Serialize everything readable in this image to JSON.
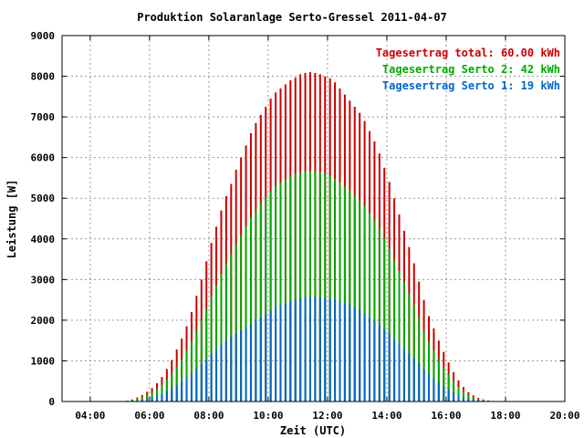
{
  "chart_data": {
    "type": "bar",
    "title": "Produktion Solaranlage Serto-Gressel 2011-04-07",
    "xlabel": "Zeit (UTC)",
    "ylabel": "Leistung [W]",
    "xlim": [
      3.05,
      20.0
    ],
    "ylim": [
      0,
      9000
    ],
    "grid": true,
    "legend_position": "top-right",
    "x_ticks": [
      "04:00",
      "06:00",
      "08:00",
      "10:00",
      "12:00",
      "14:00",
      "16:00",
      "18:00",
      "20:00"
    ],
    "y_ticks": [
      "0",
      "1000",
      "2000",
      "3000",
      "4000",
      "5000",
      "6000",
      "7000",
      "8000",
      "9000"
    ],
    "colors": {
      "total": "#cc0000",
      "serto2": "#00aa00",
      "serto1": "#0066cc",
      "grid": "#999999",
      "axis": "#000000"
    },
    "series": [
      {
        "name": "Tagesertrag total: 60.00 kWh"
      },
      {
        "name": "Tagesertrag Serto 2: 42 kWh"
      },
      {
        "name": "Tagesertrag Serto 1: 19 kWh"
      }
    ],
    "x": [
      "05:15",
      "05:25",
      "05:35",
      "05:45",
      "05:55",
      "06:05",
      "06:15",
      "06:25",
      "06:35",
      "06:45",
      "06:55",
      "07:05",
      "07:15",
      "07:25",
      "07:35",
      "07:45",
      "07:55",
      "08:05",
      "08:15",
      "08:25",
      "08:35",
      "08:45",
      "08:55",
      "09:05",
      "09:15",
      "09:25",
      "09:35",
      "09:45",
      "09:55",
      "10:05",
      "10:15",
      "10:25",
      "10:35",
      "10:45",
      "10:55",
      "11:05",
      "11:15",
      "11:25",
      "11:35",
      "11:45",
      "11:55",
      "12:05",
      "12:15",
      "12:25",
      "12:35",
      "12:45",
      "12:55",
      "13:05",
      "13:15",
      "13:25",
      "13:35",
      "13:45",
      "13:55",
      "14:05",
      "14:15",
      "14:25",
      "14:35",
      "14:45",
      "14:55",
      "15:05",
      "15:15",
      "15:25",
      "15:35",
      "15:45",
      "15:55",
      "16:05",
      "16:15",
      "16:25",
      "16:35",
      "16:45",
      "16:55",
      "17:05",
      "17:15",
      "17:25",
      "17:35",
      "17:45"
    ],
    "total": [
      20,
      50,
      100,
      160,
      240,
      330,
      450,
      600,
      800,
      1020,
      1280,
      1550,
      1850,
      2200,
      2600,
      3000,
      3450,
      3900,
      4300,
      4700,
      5050,
      5350,
      5700,
      6000,
      6300,
      6600,
      6850,
      7050,
      7250,
      7450,
      7600,
      7700,
      7800,
      7900,
      7970,
      8050,
      8080,
      8100,
      8080,
      8050,
      8000,
      7950,
      7850,
      7700,
      7550,
      7400,
      7250,
      7100,
      6900,
      6650,
      6400,
      6100,
      5750,
      5400,
      5000,
      4600,
      4200,
      3800,
      3400,
      2950,
      2500,
      2100,
      1800,
      1500,
      1220,
      960,
      720,
      520,
      360,
      230,
      150,
      90,
      50,
      25,
      10,
      5
    ],
    "serto2": [
      15,
      35,
      70,
      110,
      165,
      230,
      310,
      410,
      540,
      690,
      860,
      1040,
      1250,
      1480,
      1740,
      2000,
      2280,
      2580,
      2860,
      3130,
      3390,
      3620,
      3870,
      4100,
      4320,
      4520,
      4700,
      4880,
      5030,
      5170,
      5290,
      5380,
      5460,
      5530,
      5590,
      5630,
      5660,
      5670,
      5660,
      5640,
      5600,
      5550,
      5480,
      5390,
      5290,
      5180,
      5070,
      4950,
      4810,
      4640,
      4460,
      4260,
      4020,
      3770,
      3490,
      3210,
      2930,
      2650,
      2370,
      2060,
      1750,
      1470,
      1260,
      1050,
      850,
      670,
      500,
      360,
      250,
      160,
      105,
      63,
      35,
      18,
      7,
      4
    ],
    "serto1": [
      5,
      12,
      25,
      45,
      70,
      100,
      140,
      190,
      250,
      320,
      400,
      480,
      580,
      690,
      800,
      920,
      1040,
      1160,
      1280,
      1400,
      1500,
      1590,
      1670,
      1750,
      1830,
      1910,
      1990,
      2070,
      2150,
      2230,
      2300,
      2360,
      2410,
      2460,
      2500,
      2540,
      2560,
      2580,
      2570,
      2560,
      2550,
      2530,
      2500,
      2460,
      2420,
      2380,
      2320,
      2250,
      2170,
      2080,
      1980,
      1880,
      1770,
      1660,
      1540,
      1420,
      1300,
      1180,
      1060,
      940,
      800,
      670,
      560,
      460,
      370,
      290,
      210,
      150,
      100,
      65,
      40,
      25,
      14,
      7,
      3,
      1
    ]
  }
}
